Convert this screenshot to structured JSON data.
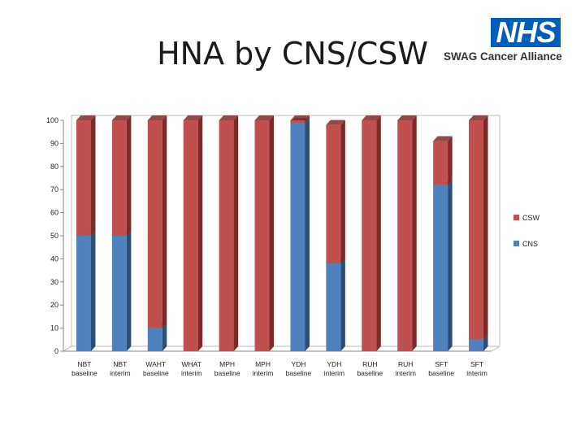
{
  "slide": {
    "title": "HNA by CNS/CSW",
    "logo_badge": "NHS",
    "logo_text": "SWAG Cancer Alliance"
  },
  "colors": {
    "csw": "#c0504d",
    "csw_dark": "#7d2a28",
    "cns": "#4f81bd",
    "cns_dark": "#2c4d75",
    "nhs_blue": "#005eb8"
  },
  "chart_data": {
    "type": "bar",
    "stacked": true,
    "categories": [
      "NBT baseline",
      "NBT interim",
      "WAHT baseline",
      "WHAT interim",
      "MPH baseline",
      "MPH interim",
      "YDH baseline",
      "YDH interim",
      "RUH baseline",
      "RUH interim",
      "SFT baseline",
      "SFT interim"
    ],
    "series": [
      {
        "name": "CNS",
        "values": [
          50,
          50,
          10,
          0,
          0,
          0,
          99,
          38,
          0,
          0,
          72,
          5
        ]
      },
      {
        "name": "CSW",
        "values": [
          50,
          50,
          90,
          100,
          100,
          100,
          1,
          60,
          100,
          100,
          19,
          95
        ]
      }
    ],
    "legend": [
      "CSW",
      "CNS"
    ],
    "legend_position": "right",
    "ylim": [
      0,
      100
    ],
    "yticks": [
      0,
      10,
      20,
      30,
      40,
      50,
      60,
      70,
      80,
      90,
      100
    ],
    "grid": false,
    "xlabel": "",
    "ylabel": ""
  }
}
